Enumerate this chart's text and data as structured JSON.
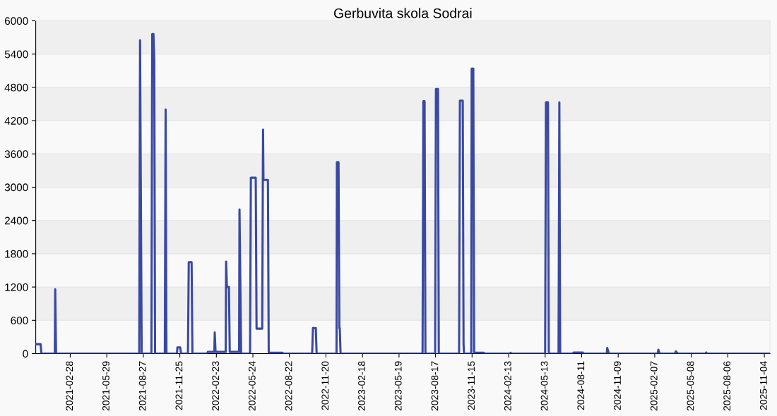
{
  "chart_data": {
    "type": "line",
    "title": "Gerbuvita skola Sodrai",
    "x": [
      "2020-12-05",
      "2020-12-17",
      "2020-12-19",
      "2021-01-21",
      "2021-01-22",
      "2021-01-24",
      "2021-08-17",
      "2021-08-19",
      "2021-08-23",
      "2021-09-16",
      "2021-09-18",
      "2021-09-21",
      "2021-09-23",
      "2021-09-25",
      "2021-10-19",
      "2021-10-21",
      "2021-10-23",
      "2021-11-18",
      "2021-11-19",
      "2021-11-26",
      "2021-11-28",
      "2021-12-15",
      "2021-12-17",
      "2021-12-24",
      "2021-12-26",
      "2022-01-31",
      "2022-02-02",
      "2022-02-18",
      "2022-02-19",
      "2022-02-21",
      "2022-03-18",
      "2022-03-19",
      "2022-03-21",
      "2022-03-26",
      "2022-03-28",
      "2022-04-20",
      "2022-04-21",
      "2022-04-25",
      "2022-05-17",
      "2022-05-19",
      "2022-05-31",
      "2022-06-02",
      "2022-06-16",
      "2022-06-18",
      "2022-06-19",
      "2022-06-30",
      "2022-07-02",
      "2022-08-05",
      "2022-08-07",
      "2022-10-17",
      "2022-10-19",
      "2022-10-26",
      "2022-10-28",
      "2022-12-16",
      "2022-12-17",
      "2022-12-21",
      "2022-12-23",
      "2022-12-24",
      "2022-12-26",
      "2023-07-16",
      "2023-07-18",
      "2023-07-21",
      "2023-07-23",
      "2023-08-16",
      "2023-08-18",
      "2023-08-23",
      "2023-08-25",
      "2023-10-14",
      "2023-10-16",
      "2023-10-23",
      "2023-10-25",
      "2023-10-26",
      "2023-11-13",
      "2023-11-14",
      "2023-11-18",
      "2023-11-20",
      "2023-12-14",
      "2023-12-16",
      "2024-02-16",
      "2024-02-18",
      "2024-02-20",
      "2024-05-13",
      "2024-05-15",
      "2024-05-20",
      "2024-05-22",
      "2024-06-15",
      "2024-06-17",
      "2024-06-19",
      "2024-07-20",
      "2024-07-22",
      "2024-08-14",
      "2024-08-15",
      "2024-10-12",
      "2024-10-13",
      "2024-10-17",
      "2025-02-14",
      "2025-02-16",
      "2025-02-19",
      "2025-03-29",
      "2025-03-31",
      "2025-04-05",
      "2025-06-12",
      "2025-06-14",
      "2025-06-15",
      "2025-11-17"
    ],
    "series": [
      {
        "color": "#3949a3",
        "values": [
          170,
          170,
          0,
          0,
          1160,
          0,
          0,
          5650,
          0,
          0,
          5760,
          5760,
          5300,
          0,
          0,
          4400,
          0,
          0,
          110,
          110,
          0,
          0,
          1650,
          1650,
          0,
          0,
          30,
          30,
          380,
          30,
          30,
          1660,
          1200,
          1200,
          30,
          30,
          2600,
          0,
          0,
          3170,
          3170,
          450,
          450,
          4040,
          3130,
          3130,
          15,
          15,
          0,
          0,
          460,
          460,
          0,
          0,
          3450,
          3450,
          460,
          460,
          0,
          0,
          4550,
          4550,
          0,
          0,
          4770,
          4770,
          0,
          0,
          4560,
          4560,
          180,
          0,
          0,
          5140,
          5140,
          15,
          15,
          0,
          0,
          15,
          0,
          0,
          4530,
          4530,
          0,
          0,
          4530,
          0,
          0,
          20,
          20,
          0,
          0,
          100,
          0,
          0,
          70,
          0,
          0,
          40,
          0,
          0,
          20,
          0,
          0
        ]
      }
    ],
    "xlim": [
      "2020-12-05",
      "2025-11-18"
    ],
    "xticks": [
      "2021-02-28",
      "2021-05-29",
      "2021-08-27",
      "2021-11-25",
      "2022-02-23",
      "2022-05-24",
      "2022-08-22",
      "2022-11-20",
      "2023-02-18",
      "2023-05-19",
      "2023-08-17",
      "2023-11-15",
      "2024-02-13",
      "2024-05-13",
      "2024-08-11",
      "2024-11-09",
      "2025-02-07",
      "2025-05-08",
      "2025-08-06",
      "2025-11-04"
    ],
    "ylim": [
      0,
      6000
    ],
    "yticks": [
      0,
      600,
      1200,
      1800,
      2400,
      3000,
      3600,
      4200,
      4800,
      5400,
      6000
    ],
    "grid": "y",
    "marker": "none",
    "line_style": "solid"
  }
}
